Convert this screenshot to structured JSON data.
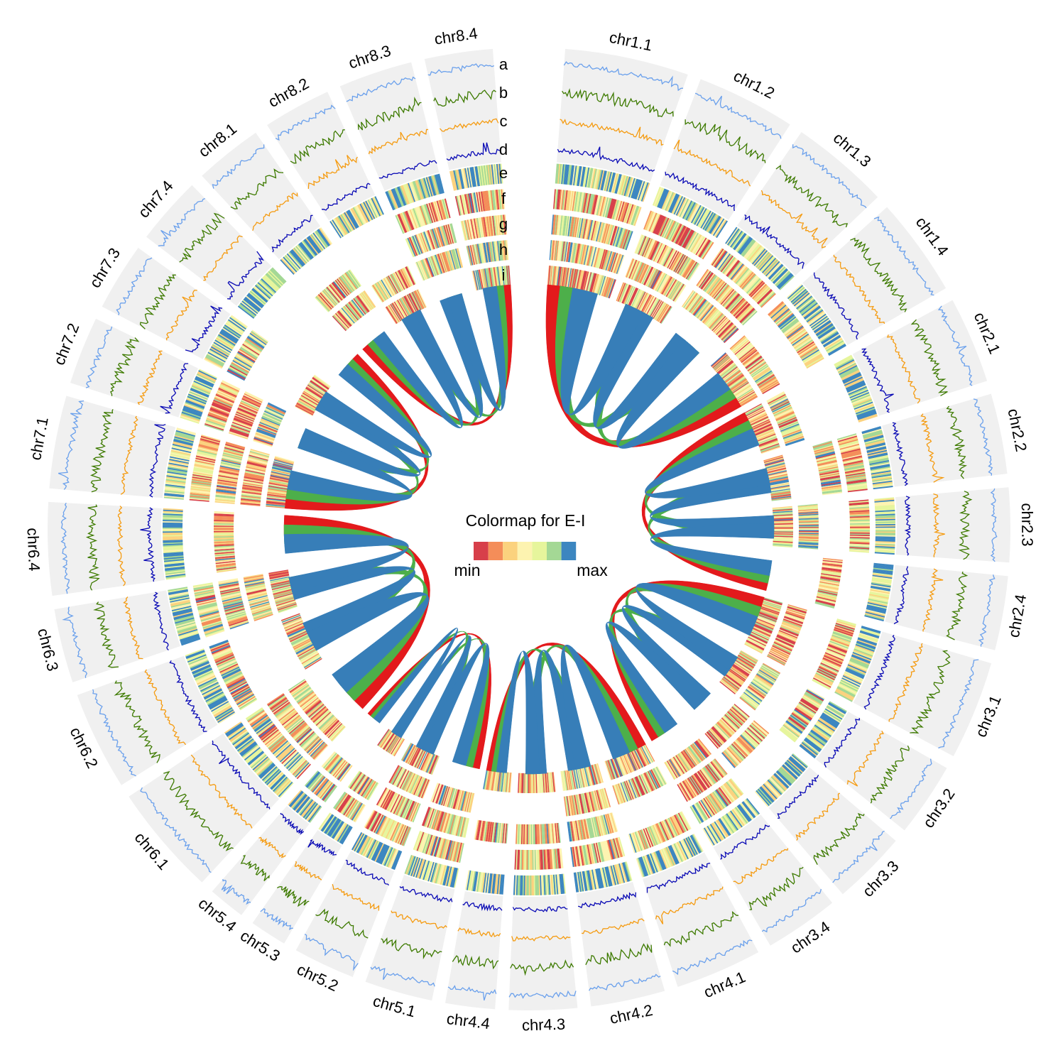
{
  "diagram": {
    "chromosomes": [
      {
        "name": "chr1.1",
        "size": 100
      },
      {
        "name": "chr1.2",
        "size": 80
      },
      {
        "name": "chr1.3",
        "size": 80
      },
      {
        "name": "chr1.4",
        "size": 80
      },
      {
        "name": "chr2.1",
        "size": 70
      },
      {
        "name": "chr2.2",
        "size": 65
      },
      {
        "name": "chr2.3",
        "size": 60
      },
      {
        "name": "chr2.4",
        "size": 60
      },
      {
        "name": "chr3.1",
        "size": 80
      },
      {
        "name": "chr3.2",
        "size": 60
      },
      {
        "name": "chr3.3",
        "size": 60
      },
      {
        "name": "chr3.4",
        "size": 60
      },
      {
        "name": "chr4.1",
        "size": 70
      },
      {
        "name": "chr4.2",
        "size": 60
      },
      {
        "name": "chr4.3",
        "size": 55
      },
      {
        "name": "chr4.4",
        "size": 40
      },
      {
        "name": "chr5.1",
        "size": 55
      },
      {
        "name": "chr5.2",
        "size": 50
      },
      {
        "name": "chr5.3",
        "size": 30
      },
      {
        "name": "chr5.4",
        "size": 30
      },
      {
        "name": "chr6.1",
        "size": 90
      },
      {
        "name": "chr6.2",
        "size": 80
      },
      {
        "name": "chr6.3",
        "size": 60
      },
      {
        "name": "chr6.4",
        "size": 75
      },
      {
        "name": "chr7.1",
        "size": 75
      },
      {
        "name": "chr7.2",
        "size": 55
      },
      {
        "name": "chr7.3",
        "size": 55
      },
      {
        "name": "chr7.4",
        "size": 55
      },
      {
        "name": "chr8.1",
        "size": 55
      },
      {
        "name": "chr8.2",
        "size": 55
      },
      {
        "name": "chr8.3",
        "size": 60
      },
      {
        "name": "chr8.4",
        "size": 55
      }
    ],
    "tracks": [
      {
        "letter": "a",
        "type": "line",
        "color": "#6aa0ec"
      },
      {
        "letter": "b",
        "type": "line",
        "color": "#3d7a00"
      },
      {
        "letter": "c",
        "type": "line",
        "color": "#f59b10"
      },
      {
        "letter": "d",
        "type": "line",
        "color": "#0a0ab5"
      },
      {
        "letter": "e",
        "type": "heatmap"
      },
      {
        "letter": "f",
        "type": "heatmap"
      },
      {
        "letter": "g",
        "type": "heatmap"
      },
      {
        "letter": "h",
        "type": "heatmap"
      },
      {
        "letter": "i",
        "type": "heatmap"
      }
    ],
    "links": {
      "colors": [
        "#e31a1c",
        "#4daf4a",
        "#377eb8"
      ]
    },
    "legend": {
      "title": "Colormap for E-I",
      "min_label": "min",
      "max_label": "max",
      "colors": [
        "#d73f4a",
        "#f48d59",
        "#fbd27e",
        "#fdf3b0",
        "#e6f59c",
        "#a4d895",
        "#3c86c0"
      ]
    },
    "background_color": "#f0f0f0"
  }
}
